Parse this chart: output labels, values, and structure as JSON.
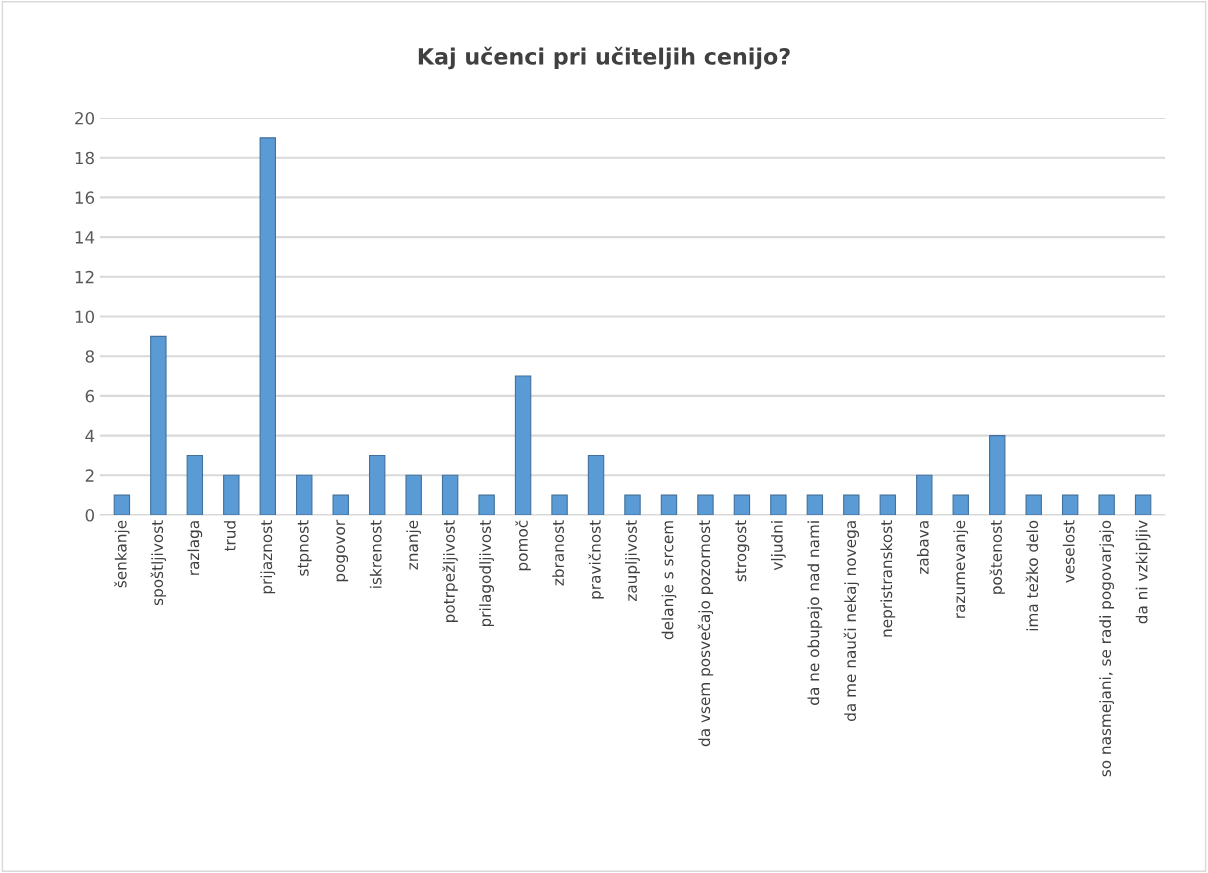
{
  "chart_data": {
    "type": "bar",
    "title": "Kaj učenci pri učiteljih cenijo?",
    "categories": [
      "šenkanje",
      "spoštljivost",
      "razlaga",
      "trud",
      "prijaznost",
      "stpnost",
      "pogovor",
      "iskrenost",
      "znanje",
      "potrpežljivost",
      "prilagodljivost",
      "pomoč",
      "zbranost",
      "pravičnost",
      "zaupljivost",
      "delanje s srcem",
      "da vsem posvečajo pozornost",
      "strogost",
      "vljudni",
      "da ne obupajo nad nami",
      "da me nauči nekaj novega",
      "nepristranskost",
      "zabava",
      "razumevanje",
      "poštenost",
      "ima težko delo",
      "veselost",
      "so nasmejani, se radi pogovarjajo",
      "da ni vzkipljiv"
    ],
    "values": [
      1,
      9,
      3,
      2,
      19,
      2,
      1,
      3,
      2,
      2,
      1,
      7,
      1,
      3,
      1,
      1,
      1,
      1,
      1,
      1,
      1,
      1,
      2,
      1,
      4,
      1,
      1,
      1,
      1
    ],
    "color": "#5b9bd5",
    "ylim": [
      0,
      20
    ],
    "yticks": [
      0,
      2,
      4,
      6,
      8,
      10,
      12,
      14,
      16,
      18,
      20
    ],
    "grid": "y"
  }
}
